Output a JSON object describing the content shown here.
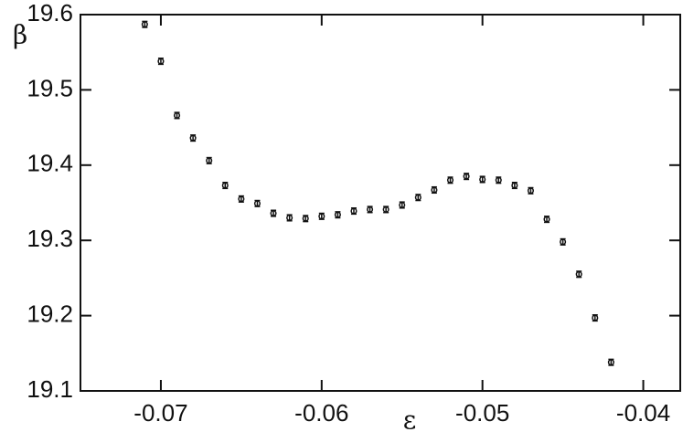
{
  "chart_data": {
    "type": "scatter",
    "x_label": "ε",
    "y_label": "β",
    "x": [
      -0.071,
      -0.07,
      -0.069,
      -0.068,
      -0.067,
      -0.066,
      -0.065,
      -0.064,
      -0.063,
      -0.062,
      -0.061,
      -0.06,
      -0.059,
      -0.058,
      -0.057,
      -0.056,
      -0.055,
      -0.054,
      -0.053,
      -0.052,
      -0.051,
      -0.05,
      -0.049,
      -0.048,
      -0.047,
      -0.046,
      -0.045,
      -0.044,
      -0.043,
      -0.042
    ],
    "values": [
      19.587,
      19.538,
      19.466,
      19.436,
      19.406,
      19.373,
      19.355,
      19.349,
      19.336,
      19.33,
      19.329,
      19.332,
      19.334,
      19.339,
      19.341,
      19.341,
      19.347,
      19.357,
      19.367,
      19.38,
      19.385,
      19.381,
      19.38,
      19.373,
      19.366,
      19.328,
      19.298,
      19.255,
      19.197,
      19.138
    ],
    "errors": [
      0.004,
      0.004,
      0.004,
      0.004,
      0.004,
      0.004,
      0.004,
      0.004,
      0.004,
      0.004,
      0.004,
      0.004,
      0.004,
      0.004,
      0.004,
      0.004,
      0.004,
      0.004,
      0.004,
      0.004,
      0.004,
      0.004,
      0.004,
      0.004,
      0.004,
      0.004,
      0.004,
      0.004,
      0.004,
      0.004
    ],
    "color": "#111111",
    "xlim": [
      -0.075,
      -0.0377
    ],
    "xticks": [
      -0.07,
      -0.06,
      -0.05,
      -0.04
    ],
    "ylim": [
      19.1,
      19.6
    ],
    "yticks": [
      19.1,
      19.2,
      19.3,
      19.4,
      19.5,
      19.6
    ]
  }
}
